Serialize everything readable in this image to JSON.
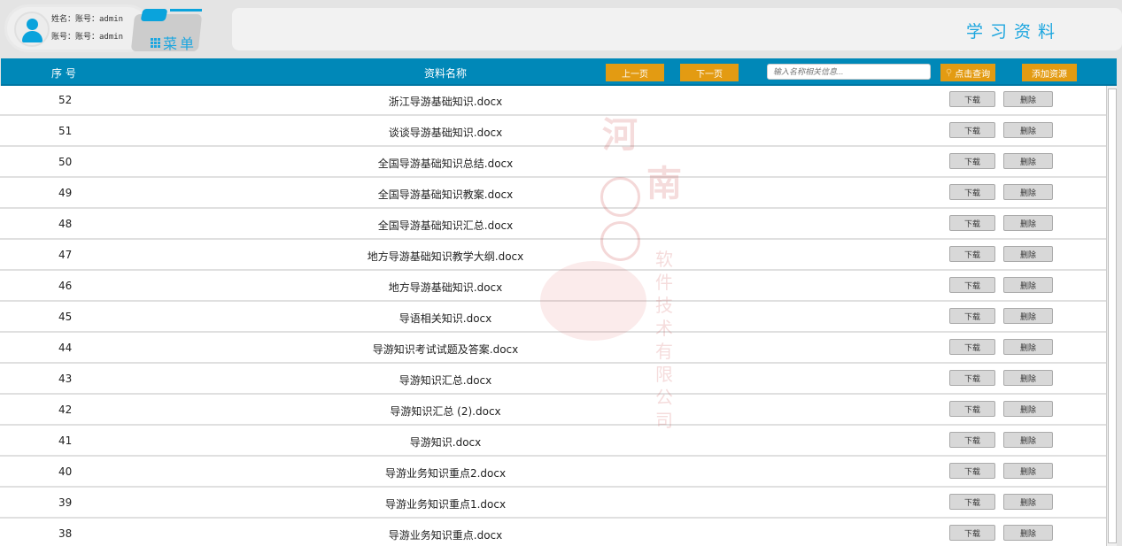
{
  "user": {
    "name_line": "姓名：账号：admin",
    "account_line": "账号：账号：admin"
  },
  "menu_label": "菜单",
  "page_title": "学习资料",
  "header": {
    "col_no": "序 号",
    "col_name": "资料名称",
    "prev": "上一页",
    "next": "下一页",
    "search_placeholder": "输入名称相关信息...",
    "search_btn": "点击查询",
    "add_btn": "添加资源"
  },
  "row_actions": {
    "download": "下载",
    "delete": "删除"
  },
  "watermark": "河南兰幻软件技术有限公司",
  "rows": [
    {
      "no": "52",
      "name": "浙江导游基础知识.docx"
    },
    {
      "no": "51",
      "name": "谈谈导游基础知识.docx"
    },
    {
      "no": "50",
      "name": "全国导游基础知识总结.docx"
    },
    {
      "no": "49",
      "name": "全国导游基础知识教案.docx"
    },
    {
      "no": "48",
      "name": "全国导游基础知识汇总.docx"
    },
    {
      "no": "47",
      "name": "地方导游基础知识教学大纲.docx"
    },
    {
      "no": "46",
      "name": "地方导游基础知识.docx"
    },
    {
      "no": "45",
      "name": "导语相关知识.docx"
    },
    {
      "no": "44",
      "name": "导游知识考试试题及答案.docx"
    },
    {
      "no": "43",
      "name": "导游知识汇总.docx"
    },
    {
      "no": "42",
      "name": "导游知识汇总 (2).docx"
    },
    {
      "no": "41",
      "name": "导游知识.docx"
    },
    {
      "no": "40",
      "name": "导游业务知识重点2.docx"
    },
    {
      "no": "39",
      "name": "导游业务知识重点1.docx"
    },
    {
      "no": "38",
      "name": "导游业务知识重点.docx"
    }
  ]
}
